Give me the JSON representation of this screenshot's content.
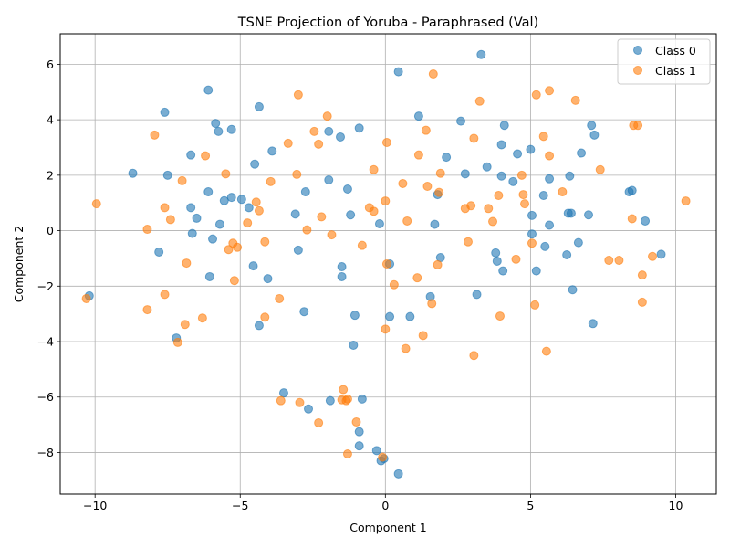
{
  "chart_data": {
    "type": "scatter",
    "title": "TSNE Projection of Yoruba - Paraphrased (Val)",
    "xlabel": "Component 1",
    "ylabel": "Component 2",
    "xlim": [
      -11.2,
      11.4
    ],
    "ylim": [
      -9.5,
      7.1
    ],
    "xticks": [
      -10,
      -5,
      0,
      5,
      10
    ],
    "yticks": [
      -8,
      -6,
      -4,
      -2,
      0,
      2,
      4,
      6
    ],
    "xtick_labels": [
      "−10",
      "−5",
      "0",
      "5",
      "10"
    ],
    "ytick_labels": [
      "−8",
      "−6",
      "−4",
      "−2",
      "0",
      "2",
      "4",
      "6"
    ],
    "grid": true,
    "legend_position": "top-right",
    "series": [
      {
        "name": "Class 0",
        "color": "#1f77b4",
        "points": [
          [
            -10.2,
            -2.35
          ],
          [
            -8.7,
            2.07
          ],
          [
            -7.8,
            -0.77
          ],
          [
            -7.6,
            4.27
          ],
          [
            -7.5,
            2.0
          ],
          [
            -7.2,
            -3.87
          ],
          [
            -6.7,
            2.73
          ],
          [
            -6.7,
            0.83
          ],
          [
            -6.65,
            -0.1
          ],
          [
            -6.5,
            0.45
          ],
          [
            -6.1,
            5.07
          ],
          [
            -6.1,
            1.4
          ],
          [
            -6.05,
            -1.66
          ],
          [
            -5.95,
            -0.3
          ],
          [
            -5.85,
            3.87
          ],
          [
            -5.75,
            3.58
          ],
          [
            -5.7,
            0.23
          ],
          [
            -5.55,
            1.08
          ],
          [
            -5.3,
            3.65
          ],
          [
            -5.3,
            1.2
          ],
          [
            -4.95,
            1.13
          ],
          [
            -4.7,
            0.83
          ],
          [
            -4.55,
            -1.27
          ],
          [
            -4.5,
            2.4
          ],
          [
            -4.35,
            4.47
          ],
          [
            -4.35,
            -3.42
          ],
          [
            -4.05,
            -1.73
          ],
          [
            -3.9,
            2.87
          ],
          [
            -3.5,
            -5.85
          ],
          [
            -3.1,
            0.6
          ],
          [
            -3.0,
            -0.7
          ],
          [
            -2.8,
            -2.92
          ],
          [
            -2.75,
            1.4
          ],
          [
            -2.65,
            -6.43
          ],
          [
            -1.95,
            3.58
          ],
          [
            -1.95,
            1.83
          ],
          [
            -1.9,
            -6.13
          ],
          [
            -1.55,
            3.38
          ],
          [
            -1.5,
            -1.3
          ],
          [
            -1.5,
            -1.66
          ],
          [
            -1.3,
            1.5
          ],
          [
            -1.2,
            0.57
          ],
          [
            -1.1,
            -4.13
          ],
          [
            -1.05,
            -3.05
          ],
          [
            -0.9,
            3.7
          ],
          [
            -0.9,
            -7.25
          ],
          [
            -0.9,
            -7.76
          ],
          [
            -0.8,
            -6.07
          ],
          [
            -0.3,
            -7.93
          ],
          [
            -0.2,
            0.25
          ],
          [
            -0.15,
            -8.3
          ],
          [
            -0.05,
            -8.22
          ],
          [
            0.15,
            -3.1
          ],
          [
            0.15,
            -1.2
          ],
          [
            0.45,
            -8.77
          ],
          [
            0.45,
            5.73
          ],
          [
            0.85,
            -3.1
          ],
          [
            1.15,
            4.13
          ],
          [
            1.55,
            -2.38
          ],
          [
            1.7,
            0.23
          ],
          [
            1.8,
            1.3
          ],
          [
            1.9,
            -0.97
          ],
          [
            2.1,
            2.65
          ],
          [
            2.6,
            3.95
          ],
          [
            2.75,
            2.05
          ],
          [
            3.15,
            -2.3
          ],
          [
            3.3,
            6.35
          ],
          [
            3.5,
            2.3
          ],
          [
            3.8,
            -0.8
          ],
          [
            3.85,
            -1.1
          ],
          [
            4.0,
            1.97
          ],
          [
            4.0,
            3.1
          ],
          [
            4.05,
            -1.45
          ],
          [
            4.1,
            3.8
          ],
          [
            4.4,
            1.77
          ],
          [
            4.55,
            2.77
          ],
          [
            5.0,
            2.93
          ],
          [
            5.05,
            0.55
          ],
          [
            5.05,
            -0.12
          ],
          [
            5.2,
            -1.45
          ],
          [
            5.45,
            1.27
          ],
          [
            5.5,
            -0.57
          ],
          [
            5.65,
            0.2
          ],
          [
            5.65,
            1.87
          ],
          [
            6.25,
            -0.87
          ],
          [
            6.3,
            0.63
          ],
          [
            6.35,
            1.97
          ],
          [
            6.4,
            0.63
          ],
          [
            6.45,
            -2.13
          ],
          [
            6.65,
            -0.43
          ],
          [
            6.75,
            2.8
          ],
          [
            7.0,
            0.57
          ],
          [
            7.1,
            3.8
          ],
          [
            7.15,
            -3.35
          ],
          [
            7.2,
            3.45
          ],
          [
            8.4,
            1.4
          ],
          [
            8.5,
            1.45
          ],
          [
            8.95,
            0.35
          ],
          [
            9.5,
            -0.85
          ]
        ]
      },
      {
        "name": "Class 1",
        "color": "#ff7f0e",
        "points": [
          [
            -10.3,
            -2.45
          ],
          [
            -9.95,
            0.97
          ],
          [
            -8.2,
            0.05
          ],
          [
            -8.2,
            -2.85
          ],
          [
            -7.95,
            3.45
          ],
          [
            -7.6,
            0.83
          ],
          [
            -7.6,
            -2.3
          ],
          [
            -7.4,
            0.4
          ],
          [
            -7.15,
            -4.03
          ],
          [
            -7.0,
            1.8
          ],
          [
            -6.9,
            -3.38
          ],
          [
            -6.85,
            -1.17
          ],
          [
            -6.3,
            -3.15
          ],
          [
            -6.2,
            2.7
          ],
          [
            -5.5,
            2.05
          ],
          [
            -5.4,
            -0.68
          ],
          [
            -5.25,
            -0.45
          ],
          [
            -5.2,
            -1.8
          ],
          [
            -5.1,
            -0.6
          ],
          [
            -4.75,
            0.28
          ],
          [
            -4.45,
            1.03
          ],
          [
            -4.35,
            0.72
          ],
          [
            -4.15,
            -0.4
          ],
          [
            -4.15,
            -3.12
          ],
          [
            -3.95,
            1.77
          ],
          [
            -3.65,
            -2.45
          ],
          [
            -3.6,
            -6.13
          ],
          [
            -3.35,
            3.15
          ],
          [
            -3.05,
            2.03
          ],
          [
            -3.0,
            4.9
          ],
          [
            -2.95,
            -6.2
          ],
          [
            -2.7,
            0.03
          ],
          [
            -2.45,
            3.58
          ],
          [
            -2.3,
            3.12
          ],
          [
            -2.3,
            -6.93
          ],
          [
            -2.2,
            0.5
          ],
          [
            -2.0,
            4.13
          ],
          [
            -1.85,
            -0.15
          ],
          [
            -1.5,
            -6.1
          ],
          [
            -1.45,
            -5.73
          ],
          [
            -1.35,
            -6.13
          ],
          [
            -1.3,
            -6.07
          ],
          [
            -1.3,
            -8.05
          ],
          [
            -1.0,
            -6.9
          ],
          [
            -0.8,
            -0.53
          ],
          [
            -0.55,
            0.83
          ],
          [
            -0.4,
            0.7
          ],
          [
            -0.4,
            2.2
          ],
          [
            -0.1,
            -8.17
          ],
          [
            0.0,
            -3.55
          ],
          [
            0.0,
            1.07
          ],
          [
            0.05,
            3.18
          ],
          [
            0.05,
            -1.2
          ],
          [
            0.3,
            -1.95
          ],
          [
            0.6,
            1.7
          ],
          [
            0.7,
            -4.25
          ],
          [
            0.75,
            0.35
          ],
          [
            1.1,
            -1.7
          ],
          [
            1.15,
            2.73
          ],
          [
            1.3,
            -3.78
          ],
          [
            1.4,
            3.62
          ],
          [
            1.45,
            1.6
          ],
          [
            1.6,
            -2.63
          ],
          [
            1.65,
            5.65
          ],
          [
            1.8,
            -1.23
          ],
          [
            1.85,
            1.38
          ],
          [
            1.9,
            2.07
          ],
          [
            2.75,
            0.8
          ],
          [
            2.85,
            -0.4
          ],
          [
            2.95,
            0.9
          ],
          [
            3.05,
            -4.5
          ],
          [
            3.05,
            3.33
          ],
          [
            3.25,
            4.67
          ],
          [
            3.55,
            0.8
          ],
          [
            3.7,
            0.33
          ],
          [
            3.9,
            1.27
          ],
          [
            3.95,
            -3.08
          ],
          [
            4.5,
            -1.03
          ],
          [
            4.7,
            2.0
          ],
          [
            4.75,
            1.3
          ],
          [
            4.8,
            0.97
          ],
          [
            5.05,
            -0.45
          ],
          [
            5.15,
            -2.68
          ],
          [
            5.2,
            4.9
          ],
          [
            5.45,
            3.4
          ],
          [
            5.55,
            -4.35
          ],
          [
            5.65,
            5.05
          ],
          [
            5.65,
            2.7
          ],
          [
            6.1,
            1.4
          ],
          [
            6.55,
            4.7
          ],
          [
            7.4,
            2.2
          ],
          [
            7.7,
            -1.07
          ],
          [
            8.05,
            -1.07
          ],
          [
            8.5,
            0.43
          ],
          [
            8.55,
            3.8
          ],
          [
            8.7,
            3.8
          ],
          [
            8.85,
            -1.6
          ],
          [
            8.85,
            -2.58
          ],
          [
            9.2,
            -0.93
          ],
          [
            10.35,
            1.07
          ]
        ]
      }
    ]
  }
}
